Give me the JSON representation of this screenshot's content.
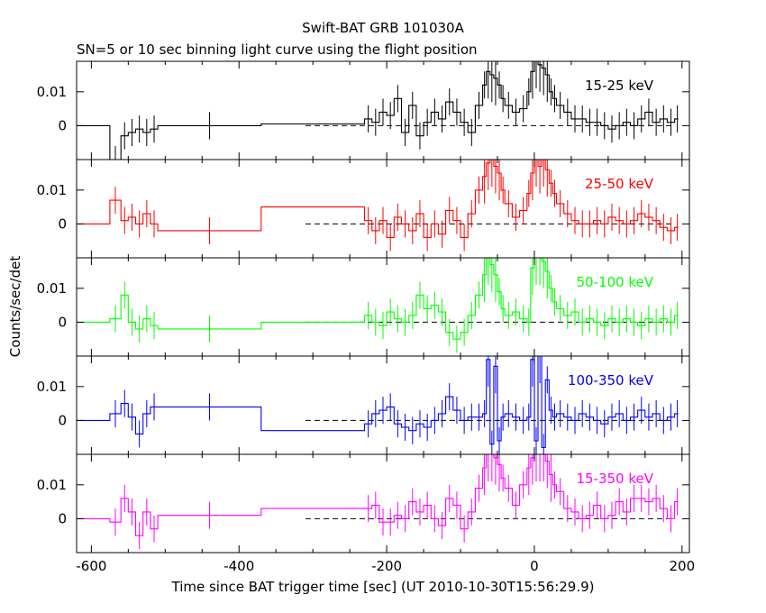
{
  "title": "Swift-BAT GRB 101030A",
  "subtitle": "SN=5 or 10 sec binning light curve using the flight position",
  "xlabel": "Time since BAT trigger time [sec] (UT 2010-10-30T15:56:29.9)",
  "ylabel": "Counts/sec/det",
  "chart_data": {
    "type": "line",
    "title": "Swift-BAT GRB 101030A",
    "subtitle": "SN=5 or 10 sec binning light curve using the flight position",
    "xlabel": "Time since BAT trigger time [sec] (UT 2010-10-30T15:56:29.9)",
    "ylabel": "Counts/sec/det",
    "xlim": [
      -620,
      210
    ],
    "x_ticks": [
      -600,
      -400,
      -200,
      0,
      200
    ],
    "x_tick_labels": [
      "-600",
      "-400",
      "-200",
      "0",
      "200"
    ],
    "ylim": [
      -0.01,
      0.019
    ],
    "y_ticks": [
      0,
      0.01
    ],
    "y_tick_labels": [
      "0",
      "0.01"
    ],
    "grid": false,
    "zero_line": "dashed from -310 to 190",
    "panels": [
      {
        "name": "15-25 keV",
        "color": "#000000",
        "x": [
          -620,
          -575,
          -560,
          -550,
          -540,
          -530,
          -520,
          -510,
          -370,
          -230,
          -220,
          -210,
          -200,
          -190,
          -180,
          -170,
          -160,
          -150,
          -140,
          -130,
          -120,
          -110,
          -100,
          -90,
          -80,
          -70,
          -65,
          -60,
          -55,
          -50,
          -45,
          -40,
          -30,
          -20,
          -10,
          -5,
          0,
          5,
          10,
          15,
          20,
          25,
          30,
          40,
          50,
          60,
          70,
          80,
          90,
          100,
          110,
          120,
          130,
          140,
          150,
          160,
          170,
          180,
          190
        ],
        "y": [
          0,
          -0.01,
          -0.003,
          -0.002,
          -0.001,
          -0.002,
          -0.001,
          0,
          0.0005,
          0.002,
          0.001,
          0.004,
          0.003,
          0.008,
          -0.002,
          0.006,
          -0.003,
          0.001,
          0.004,
          0.002,
          0.007,
          0.004,
          0.001,
          -0.002,
          0.006,
          0.012,
          0.016,
          0.015,
          0.014,
          0.012,
          0.008,
          0.006,
          0.004,
          0.005,
          0.01,
          0.016,
          0.019,
          0.018,
          0.017,
          0.015,
          0.01,
          0.008,
          0.006,
          0.004,
          0.002,
          0.002,
          0.001,
          0.001,
          0.0,
          -0.001,
          0.0,
          0.001,
          0.0,
          0.002,
          0.004,
          0.001,
          0.002,
          0.001,
          0.002
        ]
      },
      {
        "name": "25-50 keV",
        "color": "#ff0000",
        "x": [
          -620,
          -575,
          -560,
          -550,
          -540,
          -530,
          -520,
          -510,
          -370,
          -230,
          -220,
          -210,
          -200,
          -190,
          -180,
          -170,
          -160,
          -150,
          -140,
          -130,
          -120,
          -110,
          -100,
          -90,
          -80,
          -70,
          -65,
          -60,
          -55,
          -50,
          -45,
          -40,
          -30,
          -20,
          -10,
          -5,
          0,
          5,
          10,
          15,
          20,
          25,
          30,
          40,
          50,
          60,
          70,
          80,
          90,
          100,
          110,
          120,
          130,
          140,
          150,
          160,
          170,
          180,
          190
        ],
        "y": [
          0,
          0.007,
          0.001,
          0.002,
          0.0,
          0.003,
          0.0,
          -0.002,
          0.005,
          0.001,
          -0.002,
          0.001,
          -0.004,
          0.002,
          0.0,
          -0.002,
          0.003,
          -0.004,
          0.0,
          -0.003,
          0.004,
          0.001,
          -0.004,
          0.003,
          0.01,
          0.014,
          0.018,
          0.019,
          0.017,
          0.015,
          0.01,
          0.006,
          0.002,
          0.004,
          0.009,
          0.015,
          0.019,
          0.017,
          0.019,
          0.016,
          0.012,
          0.009,
          0.006,
          0.003,
          0.001,
          0.0,
          0.0,
          0.001,
          0.0,
          0.002,
          0.001,
          0.0,
          0.001,
          0.003,
          0.002,
          0.001,
          -0.001,
          -0.002,
          -0.001
        ]
      },
      {
        "name": "50-100 keV",
        "color": "#00ff00",
        "x": [
          -620,
          -575,
          -560,
          -550,
          -540,
          -530,
          -520,
          -510,
          -370,
          -230,
          -220,
          -210,
          -200,
          -190,
          -180,
          -170,
          -160,
          -150,
          -140,
          -130,
          -120,
          -110,
          -100,
          -90,
          -80,
          -70,
          -65,
          -60,
          -55,
          -50,
          -45,
          -40,
          -30,
          -20,
          -10,
          -5,
          0,
          5,
          10,
          15,
          20,
          25,
          30,
          40,
          50,
          60,
          70,
          80,
          90,
          100,
          110,
          120,
          130,
          140,
          150,
          160,
          170,
          180,
          190
        ],
        "y": [
          0,
          0.001,
          0.008,
          0.0,
          -0.002,
          0.001,
          -0.001,
          -0.002,
          0.0,
          0.002,
          0.0,
          -0.001,
          0.003,
          0.001,
          0.0,
          0.002,
          0.008,
          0.004,
          0.005,
          0.003,
          -0.003,
          -0.005,
          -0.003,
          0.002,
          0.008,
          0.014,
          0.019,
          0.017,
          0.014,
          0.009,
          0.004,
          0.002,
          0.003,
          0.001,
          0.0,
          0.016,
          0.019,
          0.019,
          0.018,
          0.015,
          0.01,
          0.006,
          0.004,
          0.002,
          0.003,
          0.0,
          0.001,
          0.0,
          -0.001,
          0.001,
          0.0,
          0.001,
          0.0,
          -0.001,
          0.001,
          0.0,
          0.001,
          0.0,
          0.002
        ]
      },
      {
        "name": "100-350 keV",
        "color": "#0000ff",
        "x": [
          -620,
          -575,
          -560,
          -550,
          -540,
          -530,
          -520,
          -510,
          -370,
          -230,
          -220,
          -210,
          -200,
          -190,
          -180,
          -170,
          -160,
          -150,
          -140,
          -130,
          -120,
          -110,
          -100,
          -90,
          -80,
          -70,
          -65,
          -60,
          -55,
          -50,
          -45,
          -40,
          -30,
          -20,
          -10,
          -5,
          0,
          5,
          10,
          15,
          20,
          25,
          30,
          40,
          50,
          60,
          70,
          80,
          90,
          100,
          110,
          120,
          130,
          140,
          150,
          160,
          170,
          180,
          190
        ],
        "y": [
          0,
          0.002,
          0.005,
          0.001,
          -0.004,
          0.002,
          0.004,
          0.004,
          -0.003,
          -0.001,
          0.002,
          0.003,
          0.004,
          -0.001,
          -0.002,
          -0.003,
          -0.001,
          -0.002,
          0.0,
          0.002,
          0.007,
          0.003,
          0.0,
          0.001,
          0.001,
          0.002,
          0.018,
          -0.007,
          0.016,
          -0.006,
          0.001,
          0.002,
          0.001,
          0.0,
          0.001,
          0.018,
          -0.006,
          0.019,
          -0.008,
          0.012,
          0.003,
          0.001,
          0.002,
          0.001,
          0.0,
          0.002,
          0.001,
          0.0,
          -0.001,
          0.001,
          0.002,
          0.0,
          0.001,
          0.003,
          0.001,
          0.002,
          0.0,
          0.001,
          0.002
        ]
      },
      {
        "name": "15-350 keV",
        "color": "#ff00ff",
        "x": [
          -620,
          -575,
          -560,
          -550,
          -540,
          -530,
          -520,
          -510,
          -370,
          -230,
          -220,
          -210,
          -200,
          -190,
          -180,
          -170,
          -160,
          -150,
          -140,
          -130,
          -120,
          -110,
          -100,
          -90,
          -80,
          -70,
          -65,
          -60,
          -55,
          -50,
          -45,
          -40,
          -30,
          -20,
          -10,
          -5,
          0,
          5,
          10,
          15,
          20,
          25,
          30,
          40,
          50,
          60,
          70,
          80,
          90,
          100,
          110,
          120,
          130,
          140,
          150,
          160,
          170,
          180,
          190
        ],
        "y": [
          0,
          -0.001,
          0.006,
          0.002,
          -0.005,
          0.002,
          -0.003,
          0.001,
          0.003,
          0.003,
          0.004,
          -0.001,
          -0.001,
          0.001,
          0.0,
          0.005,
          0.002,
          0.004,
          0.0,
          -0.002,
          0.006,
          0.004,
          -0.003,
          0.002,
          0.009,
          0.015,
          0.019,
          0.019,
          0.018,
          0.016,
          0.012,
          0.009,
          0.004,
          0.01,
          0.015,
          0.018,
          0.019,
          0.019,
          0.019,
          0.017,
          0.013,
          0.01,
          0.008,
          0.003,
          0.002,
          0.0,
          0.001,
          0.004,
          0.0,
          0.001,
          0.005,
          0.002,
          0.006,
          0.006,
          0.005,
          0.006,
          0.003,
          0.0,
          0.005
        ]
      }
    ]
  }
}
